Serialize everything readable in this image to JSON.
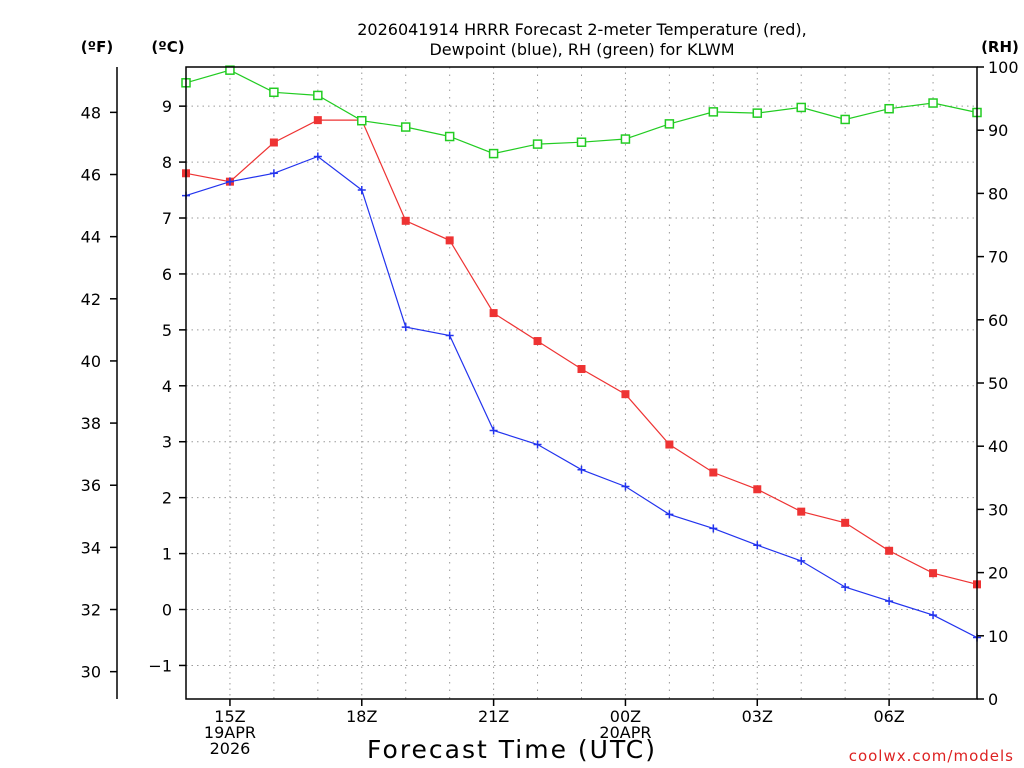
{
  "chart_data": {
    "type": "line",
    "title_line1": "2026041914 HRRR Forecast 2-meter Temperature (red),",
    "title_line2": "Dewpoint (blue), RH (green) for KLWM",
    "xlabel": "Forecast Time (UTC)",
    "credit": "coolwx.com/models",
    "left_axis_f_label": "(ºF)",
    "left_axis_c_label": "(ºC)",
    "right_axis_label": "(RH)",
    "x_hours": [
      14,
      15,
      16,
      17,
      18,
      19,
      20,
      21,
      22,
      23,
      24,
      25,
      26,
      27,
      28,
      29,
      30,
      31,
      32
    ],
    "x_ticks": [
      {
        "hour": 15,
        "lines": [
          "15Z",
          "19APR",
          "2026"
        ]
      },
      {
        "hour": 18,
        "lines": [
          "18Z"
        ]
      },
      {
        "hour": 21,
        "lines": [
          "21Z"
        ]
      },
      {
        "hour": 24,
        "lines": [
          "00Z",
          "20APR"
        ]
      },
      {
        "hour": 27,
        "lines": [
          "03Z"
        ]
      },
      {
        "hour": 30,
        "lines": [
          "06Z"
        ]
      }
    ],
    "celsius_range": [
      -1.6,
      9.7
    ],
    "celsius_ticks": [
      "−1",
      "0",
      "1",
      "2",
      "3",
      "4",
      "5",
      "6",
      "7",
      "8",
      "9"
    ],
    "fahrenheit_ticks": [
      "30",
      "32",
      "34",
      "36",
      "38",
      "40",
      "42",
      "44",
      "46",
      "48"
    ],
    "rh_range": [
      0,
      100
    ],
    "rh_ticks": [
      "0",
      "10",
      "20",
      "30",
      "40",
      "50",
      "60",
      "70",
      "80",
      "90",
      "100"
    ],
    "series": [
      {
        "name": "2-meter Temperature",
        "color": "#ee3333",
        "marker": "filled-square",
        "values": [
          7.8,
          7.65,
          8.35,
          8.75,
          8.75,
          6.95,
          6.6,
          5.3,
          4.8,
          4.3,
          3.85,
          2.95,
          2.45,
          2.15,
          1.75,
          1.55,
          1.05,
          0.65,
          0.45
        ]
      },
      {
        "name": "Dewpoint",
        "color": "#2233ee",
        "marker": "plus",
        "values": [
          7.4,
          7.65,
          7.8,
          8.1,
          7.5,
          5.05,
          4.9,
          3.2,
          2.95,
          2.5,
          2.2,
          1.7,
          1.45,
          1.15,
          0.87,
          0.4,
          0.15,
          -0.1,
          -0.5
        ]
      },
      {
        "name": "RH",
        "color": "#22cc22",
        "marker": "open-square",
        "values": [
          97.5,
          99.5,
          96.0,
          95.5,
          91.5,
          90.5,
          89.0,
          86.3,
          87.8,
          88.1,
          88.6,
          91.0,
          92.9,
          92.7,
          93.6,
          91.7,
          93.4,
          94.3,
          92.8
        ]
      }
    ]
  }
}
